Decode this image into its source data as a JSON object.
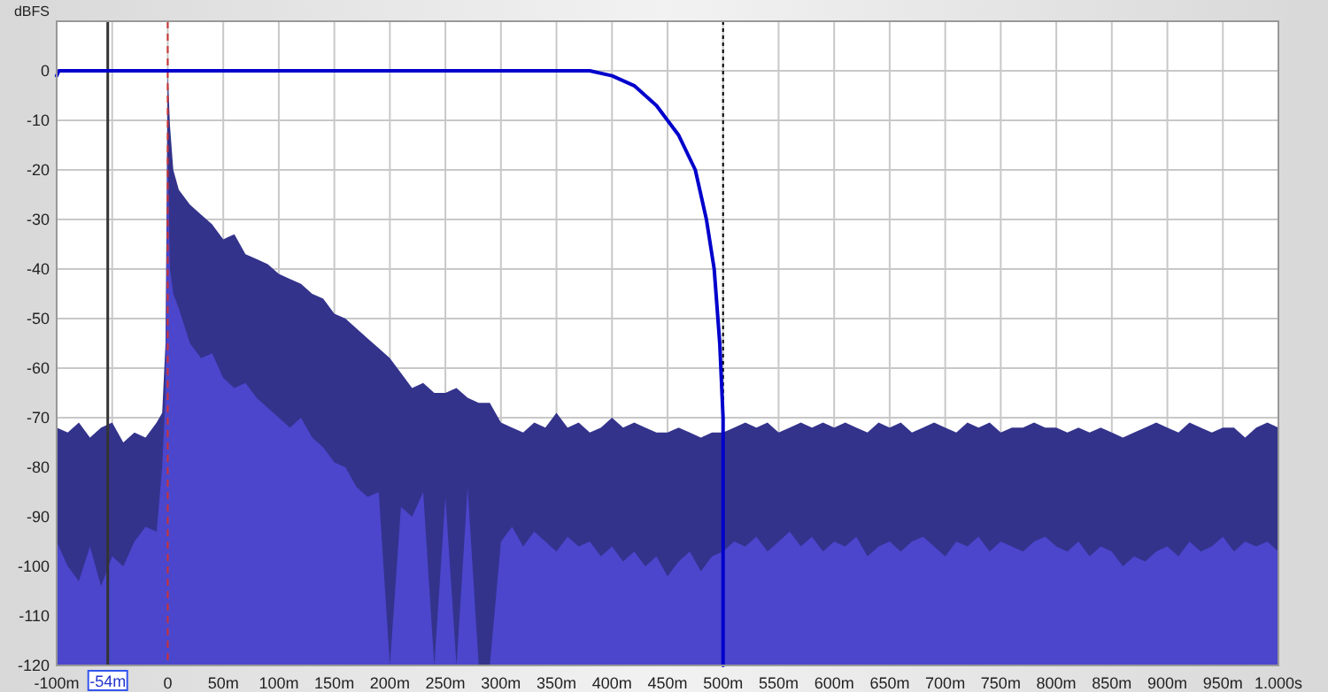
{
  "chart_data": {
    "type": "area",
    "ylabel": "dBFS",
    "series": [
      {
        "color": "#33338c",
        "x": [
          -100,
          -100,
          -90,
          -80,
          -70,
          -60,
          -50,
          -40,
          -30,
          -20,
          -10,
          -5,
          -2,
          0,
          2,
          5,
          10,
          20,
          30,
          40,
          50,
          60,
          70,
          80,
          90,
          100,
          110,
          120,
          130,
          140,
          150,
          160,
          170,
          180,
          190,
          200,
          210,
          220,
          230,
          240,
          250,
          260,
          270,
          280,
          290,
          300,
          310,
          320,
          330,
          340,
          350,
          360,
          370,
          380,
          390,
          400,
          410,
          420,
          430,
          440,
          450,
          460,
          470,
          480,
          490,
          500,
          510,
          520,
          530,
          540,
          550,
          560,
          570,
          580,
          590,
          600,
          610,
          620,
          630,
          640,
          650,
          660,
          670,
          680,
          690,
          700,
          710,
          720,
          730,
          740,
          750,
          760,
          770,
          780,
          790,
          800,
          810,
          820,
          830,
          840,
          850,
          860,
          870,
          880,
          890,
          900,
          910,
          920,
          930,
          940,
          950,
          960,
          970,
          980,
          990,
          1000,
          1000
        ],
        "values": [
          -120,
          -72,
          -73,
          -71,
          -74,
          -72,
          -71,
          -75,
          -73,
          -74,
          -71,
          -69,
          -55,
          0,
          -11,
          -20,
          -24,
          -27,
          -29,
          -31,
          -34,
          -33,
          -37,
          -38,
          -39,
          -41,
          -42,
          -43,
          -45,
          -46,
          -49,
          -50,
          -52,
          -54,
          -56,
          -58,
          -61,
          -64,
          -63,
          -65,
          -65,
          -64,
          -66,
          -67,
          -67,
          -71,
          -72,
          -73,
          -71,
          -72,
          -69,
          -72,
          -71,
          -73,
          -72,
          -70,
          -72,
          -71,
          -72,
          -73,
          -73,
          -72,
          -73,
          -74,
          -73,
          -73,
          -72,
          -71,
          -72,
          -71,
          -73,
          -72,
          -71,
          -72,
          -71,
          -72,
          -71,
          -72,
          -73,
          -71,
          -72,
          -71,
          -73,
          -72,
          -71,
          -72,
          -73,
          -71,
          -72,
          -71,
          -73,
          -72,
          -72,
          -71,
          -72,
          -72,
          -73,
          -72,
          -73,
          -72,
          -73,
          -74,
          -73,
          -72,
          -71,
          -72,
          -73,
          -71,
          -72,
          -73,
          -72,
          -72,
          -74,
          -72,
          -71,
          -72,
          -120
        ]
      },
      {
        "color": "#4b46cc",
        "x": [
          -100,
          -100,
          -90,
          -80,
          -70,
          -60,
          -50,
          -40,
          -30,
          -20,
          -10,
          -5,
          -2,
          0,
          2,
          5,
          10,
          20,
          30,
          40,
          50,
          60,
          70,
          80,
          90,
          100,
          110,
          120,
          130,
          140,
          150,
          160,
          170,
          180,
          190,
          200,
          210,
          220,
          230,
          240,
          250,
          260,
          270,
          280,
          290,
          300,
          310,
          320,
          330,
          340,
          350,
          360,
          370,
          380,
          390,
          400,
          410,
          420,
          430,
          440,
          450,
          460,
          470,
          480,
          490,
          500,
          510,
          520,
          530,
          540,
          550,
          560,
          570,
          580,
          590,
          600,
          610,
          620,
          630,
          640,
          650,
          660,
          670,
          680,
          690,
          700,
          710,
          720,
          730,
          740,
          750,
          760,
          770,
          780,
          790,
          800,
          810,
          820,
          830,
          840,
          850,
          860,
          870,
          880,
          890,
          900,
          910,
          920,
          930,
          940,
          950,
          960,
          970,
          980,
          990,
          1000,
          1000
        ],
        "values": [
          -120,
          -95,
          -100,
          -103,
          -96,
          -104,
          -98,
          -100,
          -95,
          -92,
          -93,
          -80,
          -65,
          -15,
          -40,
          -45,
          -48,
          -55,
          -58,
          -57,
          -62,
          -64,
          -63,
          -66,
          -68,
          -70,
          -72,
          -70,
          -74,
          -76,
          -79,
          -80,
          -84,
          -86,
          -85,
          -120,
          -88,
          -90,
          -85,
          -120,
          -86,
          -120,
          -84,
          -120,
          -120,
          -95,
          -92,
          -96,
          -93,
          -95,
          -97,
          -94,
          -96,
          -95,
          -98,
          -96,
          -99,
          -97,
          -100,
          -98,
          -102,
          -99,
          -97,
          -101,
          -98,
          -97,
          -95,
          -96,
          -94,
          -97,
          -95,
          -93,
          -96,
          -94,
          -97,
          -95,
          -96,
          -94,
          -98,
          -96,
          -95,
          -97,
          -95,
          -94,
          -96,
          -98,
          -95,
          -96,
          -94,
          -97,
          -95,
          -96,
          -97,
          -95,
          -94,
          -96,
          -97,
          -95,
          -98,
          -96,
          -97,
          -100,
          -98,
          -99,
          -97,
          -96,
          -98,
          -95,
          -97,
          -96,
          -94,
          -97,
          -95,
          -96,
          -95,
          -97,
          -120
        ]
      },
      {
        "type": "line",
        "color": "#0000cc",
        "x": [
          -100,
          -98,
          0,
          100,
          200,
          300,
          380,
          400,
          420,
          440,
          460,
          475,
          485,
          492,
          497,
          500,
          500
        ],
        "values": [
          -1,
          0,
          0,
          0,
          0,
          0,
          0,
          -1,
          -3,
          -7,
          -13,
          -20,
          -30,
          -40,
          -55,
          -70,
          -120
        ]
      }
    ],
    "xlim": [
      -100,
      1000
    ],
    "xticks": [
      {
        "value": -100,
        "label": "-100m"
      },
      {
        "value": -50,
        "label": null
      },
      {
        "value": 0,
        "label": "0"
      },
      {
        "value": 50,
        "label": "50m"
      },
      {
        "value": 100,
        "label": "100m"
      },
      {
        "value": 150,
        "label": "150m"
      },
      {
        "value": 200,
        "label": "200m"
      },
      {
        "value": 250,
        "label": "250m"
      },
      {
        "value": 300,
        "label": "300m"
      },
      {
        "value": 350,
        "label": "350m"
      },
      {
        "value": 400,
        "label": "400m"
      },
      {
        "value": 450,
        "label": "450m"
      },
      {
        "value": 500,
        "label": "500m"
      },
      {
        "value": 550,
        "label": "550m"
      },
      {
        "value": 600,
        "label": "600m"
      },
      {
        "value": 650,
        "label": "650m"
      },
      {
        "value": 700,
        "label": "700m"
      },
      {
        "value": 750,
        "label": "750m"
      },
      {
        "value": 800,
        "label": "800m"
      },
      {
        "value": 850,
        "label": "850m"
      },
      {
        "value": 900,
        "label": "900m"
      },
      {
        "value": 950,
        "label": "950m"
      },
      {
        "value": 1000,
        "label": "1.000s"
      }
    ],
    "ylim": [
      -120,
      10
    ],
    "yticks": [
      {
        "value": 10,
        "label": null
      },
      0,
      -10,
      -20,
      -30,
      -40,
      -50,
      -60,
      -70,
      -80,
      -90,
      -100,
      -110,
      -120
    ],
    "ref_lines": [
      {
        "axis": "x",
        "value": -54,
        "label": "-54m",
        "color": "#333333",
        "line_style": "solid"
      },
      {
        "axis": "x",
        "value": 0,
        "color": "#cc3333",
        "line_style": "dashed"
      },
      {
        "axis": "x",
        "value": 500,
        "color": "#000000",
        "line_style": "dotted"
      }
    ],
    "grid": true
  }
}
